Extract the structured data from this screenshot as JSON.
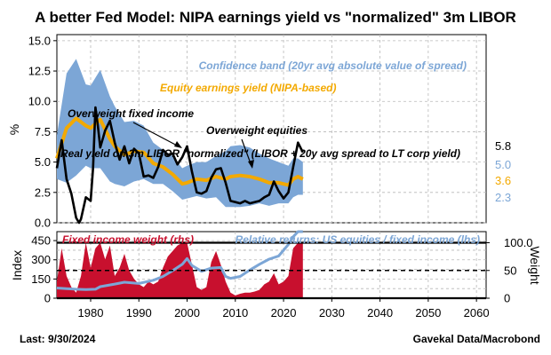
{
  "title": "A better Fed Model: NIPA earnings yield vs \"normalized\" 3m LIBOR",
  "footer": {
    "left": "Last: 9/30/2024",
    "right": "Gavekal Data/Macrobond"
  },
  "colors": {
    "band": "#7ca6d6",
    "equity_yield": "#f3a900",
    "libor": "#000000",
    "fi_weight": "#c8102e",
    "relative_returns": "#7ca6d6",
    "grid": "#b8b8b8"
  },
  "chart_data": [
    {
      "type": "line",
      "panel": "top",
      "ylabel": "%",
      "ylim": [
        0,
        15.5
      ],
      "xlim": [
        1973,
        2062
      ],
      "grid": true,
      "yticks": [
        0.0,
        2.5,
        5.0,
        7.5,
        10.0,
        12.5,
        15.0
      ],
      "ytick_labels": [
        "0.0",
        "2.5",
        "5.0",
        "7.5",
        "10.0",
        "12.5",
        "15.0"
      ],
      "annotations": {
        "band_label": "Confidence band (20yr avg absolute value of spread)",
        "equity_label": "Equity earnings yield (NIPA-based)",
        "overweight_fixed": "Overweight fixed income",
        "overweight_equities": "Overweight equities",
        "libor_label": "Real yield on 3m LIBOR \"normalized\" (LIBOR + 20y avg spread to LT corp yield)"
      },
      "last_values": [
        "5.8",
        "5.0",
        "3.6",
        "2.3"
      ],
      "series": [
        {
          "name": "Confidence band upper",
          "x": [
            1973,
            1975,
            1977,
            1979,
            1980,
            1982,
            1984,
            1985,
            1987,
            1989,
            1991,
            1993,
            1995,
            1997,
            1999,
            2000,
            2002,
            2004,
            2006,
            2008,
            2009,
            2011,
            2013,
            2015,
            2017,
            2019,
            2021,
            2022,
            2023,
            2024
          ],
          "values": [
            7.2,
            12.3,
            13.5,
            11.4,
            11.3,
            12.6,
            10.4,
            9.6,
            8.3,
            8.4,
            8.0,
            6.6,
            6.0,
            5.5,
            4.5,
            4.7,
            5.0,
            5.0,
            5.5,
            5.9,
            6.3,
            6.4,
            6.2,
            5.7,
            5.3,
            5.0,
            4.7,
            5.3,
            5.3,
            5.0
          ]
        },
        {
          "name": "Confidence band lower",
          "x": [
            1973,
            1975,
            1977,
            1979,
            1980,
            1982,
            1984,
            1985,
            1987,
            1989,
            1991,
            1993,
            1995,
            1997,
            1999,
            2000,
            2002,
            2004,
            2006,
            2008,
            2009,
            2011,
            2013,
            2015,
            2017,
            2019,
            2021,
            2022,
            2023,
            2024
          ],
          "values": [
            3.6,
            3.3,
            3.9,
            4.7,
            4.5,
            4.5,
            3.4,
            3.2,
            3.0,
            3.4,
            3.6,
            3.2,
            3.2,
            2.6,
            1.9,
            2.0,
            2.2,
            2.0,
            2.1,
            1.3,
            1.3,
            1.3,
            1.4,
            1.6,
            1.4,
            1.6,
            1.6,
            2.1,
            2.3,
            2.3
          ]
        },
        {
          "name": "Equity earnings yield (NIPA-based)",
          "x": [
            1973,
            1975,
            1977,
            1979,
            1980,
            1982,
            1984,
            1985,
            1987,
            1989,
            1991,
            1993,
            1995,
            1997,
            1999,
            2000,
            2002,
            2004,
            2006,
            2008,
            2009,
            2011,
            2013,
            2015,
            2017,
            2019,
            2021,
            2022,
            2023,
            2024
          ],
          "values": [
            5.3,
            7.8,
            8.6,
            8.0,
            7.8,
            8.5,
            6.9,
            6.3,
            5.6,
            5.9,
            5.8,
            4.9,
            4.6,
            4.0,
            3.2,
            3.3,
            3.6,
            3.5,
            3.8,
            3.6,
            3.8,
            3.9,
            3.8,
            3.6,
            3.3,
            3.3,
            3.1,
            3.6,
            3.8,
            3.6
          ]
        },
        {
          "name": "Real yield on 3m LIBOR normalized",
          "x": [
            1973,
            1974,
            1975,
            1976,
            1977,
            1977.6,
            1978,
            1979,
            1980,
            1980.5,
            1981,
            1981.5,
            1982,
            1983,
            1984,
            1985,
            1986,
            1987,
            1988,
            1989,
            1990,
            1991,
            1992,
            1993,
            1994,
            1995,
            1996,
            1997,
            1998,
            1999,
            2000,
            2001,
            2002,
            2003,
            2004,
            2005,
            2006,
            2007,
            2008,
            2009,
            2010,
            2011,
            2012,
            2013,
            2014,
            2015,
            2016,
            2017,
            2018,
            2019,
            2020,
            2021,
            2022,
            2023,
            2024
          ],
          "values": [
            4.5,
            6.8,
            3.6,
            2.4,
            0.4,
            0.0,
            0.3,
            2.1,
            1.8,
            4.5,
            9.5,
            8.0,
            6.2,
            7.6,
            8.4,
            6.6,
            5.2,
            6.3,
            4.9,
            6.1,
            5.7,
            3.8,
            3.9,
            3.7,
            4.6,
            6.0,
            5.6,
            5.7,
            4.8,
            5.4,
            6.3,
            4.2,
            2.5,
            2.4,
            2.6,
            3.7,
            4.4,
            4.5,
            3.3,
            1.8,
            1.7,
            1.6,
            1.8,
            1.6,
            1.7,
            1.8,
            2.1,
            2.3,
            3.4,
            2.6,
            2.0,
            2.5,
            4.6,
            6.6,
            5.8
          ]
        }
      ]
    },
    {
      "type": "area",
      "panel": "bottom",
      "ylabel": "Index",
      "ylabel_right": "Weight",
      "ylim": [
        0,
        520
      ],
      "ylim_right": [
        0,
        120
      ],
      "xlim": [
        1973,
        2062
      ],
      "grid": true,
      "yticks": [
        0,
        150,
        300,
        450
      ],
      "yticks_minor": [
        75,
        225,
        375
      ],
      "ytick_labels": [
        "0",
        "150",
        "300",
        "450"
      ],
      "yticks_right": [
        0,
        50,
        100
      ],
      "ytick_labels_right": [
        "0",
        "50",
        "100.0"
      ],
      "xticks": [
        1980,
        1990,
        2000,
        2010,
        2020,
        2030,
        2040,
        2050,
        2060
      ],
      "xtick_labels": [
        "1980",
        "1990",
        "2000",
        "2010",
        "2020",
        "2030",
        "2040",
        "2050",
        "2060"
      ],
      "reference_lines_right": [
        0,
        50,
        100
      ],
      "annotations": {
        "fi_label": "Fixed income weight (rhs)",
        "rel_label": "Relative returns: US equities / fixed income (lhs)"
      },
      "series": [
        {
          "name": "Fixed income weight (rhs)",
          "axis": "right",
          "x": [
            1973,
            1974,
            1975,
            1976,
            1977,
            1978,
            1979,
            1980,
            1981,
            1982,
            1983,
            1984,
            1985,
            1986,
            1987,
            1988,
            1989,
            1990,
            1991,
            1992,
            1993,
            1994,
            1995,
            1996,
            1997,
            1998,
            1999,
            2000,
            2001,
            2002,
            2003,
            2004,
            2005,
            2006,
            2007,
            2008,
            2009,
            2010,
            2011,
            2012,
            2013,
            2014,
            2015,
            2016,
            2017,
            2018,
            2019,
            2020,
            2021,
            2022,
            2023,
            2024
          ],
          "values": [
            30,
            90,
            40,
            20,
            10,
            40,
            100,
            55,
            90,
            100,
            70,
            95,
            40,
            55,
            80,
            50,
            35,
            25,
            20,
            30,
            25,
            30,
            55,
            75,
            85,
            95,
            100,
            100,
            60,
            20,
            15,
            20,
            65,
            85,
            60,
            30,
            10,
            5,
            8,
            10,
            10,
            12,
            15,
            25,
            30,
            45,
            25,
            30,
            40,
            90,
            100,
            100
          ]
        },
        {
          "name": "Relative returns: US equities / fixed income (lhs)",
          "axis": "left",
          "x": [
            1973,
            1975,
            1977,
            1979,
            1981,
            1982,
            1985,
            1987,
            1990,
            1993,
            1995,
            1997,
            1999,
            2000,
            2001,
            2003,
            2005,
            2007,
            2008,
            2009,
            2011,
            2013,
            2015,
            2017,
            2019,
            2020,
            2021,
            2022,
            2023,
            2024
          ],
          "values": [
            80,
            75,
            70,
            68,
            70,
            90,
            110,
            125,
            115,
            140,
            170,
            215,
            265,
            310,
            255,
            210,
            235,
            240,
            170,
            155,
            170,
            220,
            265,
            305,
            330,
            375,
            420,
            480,
            520,
            520
          ]
        }
      ]
    }
  ]
}
